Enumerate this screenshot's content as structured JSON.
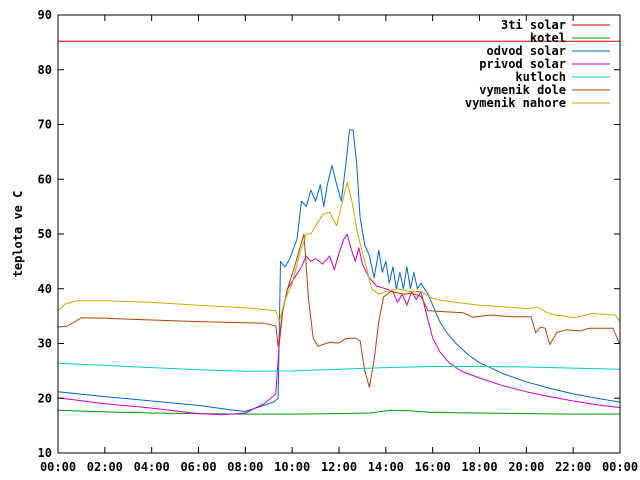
{
  "chart_data": {
    "type": "line",
    "title": "",
    "xlabel": "",
    "ylabel": "teplota ve C",
    "x_ticks": [
      "00:00",
      "02:00",
      "04:00",
      "06:00",
      "08:00",
      "10:00",
      "12:00",
      "14:00",
      "16:00",
      "18:00",
      "20:00",
      "22:00",
      "00:00"
    ],
    "xlim": [
      0,
      24
    ],
    "ylim": [
      10,
      90
    ],
    "y_ticks": [
      10,
      20,
      30,
      40,
      50,
      60,
      70,
      80,
      90
    ],
    "grid": false,
    "legend_position": "top-right",
    "series": [
      {
        "name": "3ti solar",
        "color": "#cc0000",
        "points": [
          [
            0,
            85.2
          ],
          [
            24,
            85.2
          ]
        ]
      },
      {
        "name": "kotel",
        "color": "#009900",
        "points": [
          [
            0,
            17.8
          ],
          [
            2,
            17.5
          ],
          [
            4,
            17.3
          ],
          [
            6,
            17.2
          ],
          [
            8,
            17.1
          ],
          [
            10,
            17.1
          ],
          [
            12,
            17.2
          ],
          [
            13.3,
            17.3
          ],
          [
            14.2,
            17.8
          ],
          [
            15,
            17.7
          ],
          [
            16,
            17.4
          ],
          [
            18,
            17.3
          ],
          [
            20,
            17.2
          ],
          [
            22,
            17.1
          ],
          [
            24,
            17.1
          ]
        ]
      },
      {
        "name": "odvod solar",
        "color": "#0066cc",
        "points": [
          [
            0,
            21.2
          ],
          [
            2,
            20.3
          ],
          [
            4,
            19.5
          ],
          [
            6,
            18.7
          ],
          [
            7.5,
            17.8
          ],
          [
            8,
            17.6
          ],
          [
            8.5,
            18.3
          ],
          [
            9.2,
            19.3
          ],
          [
            9.4,
            20
          ],
          [
            9.5,
            45
          ],
          [
            9.7,
            44
          ],
          [
            9.9,
            45.5
          ],
          [
            10.2,
            49
          ],
          [
            10.4,
            56
          ],
          [
            10.6,
            55
          ],
          [
            10.8,
            58
          ],
          [
            11,
            56
          ],
          [
            11.2,
            59
          ],
          [
            11.35,
            55
          ],
          [
            11.5,
            59
          ],
          [
            11.7,
            62.5
          ],
          [
            11.9,
            59
          ],
          [
            12.1,
            56
          ],
          [
            12.3,
            63
          ],
          [
            12.45,
            69
          ],
          [
            12.6,
            69
          ],
          [
            12.75,
            63
          ],
          [
            12.9,
            53
          ],
          [
            13.1,
            48
          ],
          [
            13.3,
            46
          ],
          [
            13.5,
            42
          ],
          [
            13.7,
            47
          ],
          [
            13.85,
            43
          ],
          [
            14,
            45
          ],
          [
            14.15,
            41
          ],
          [
            14.3,
            44
          ],
          [
            14.45,
            40
          ],
          [
            14.6,
            43
          ],
          [
            14.75,
            40
          ],
          [
            14.9,
            44
          ],
          [
            15.05,
            40
          ],
          [
            15.2,
            43
          ],
          [
            15.35,
            40
          ],
          [
            15.5,
            41
          ],
          [
            15.8,
            39
          ],
          [
            16,
            37
          ],
          [
            16.3,
            34
          ],
          [
            16.6,
            32
          ],
          [
            17,
            30
          ],
          [
            17.5,
            28
          ],
          [
            18,
            26.5
          ],
          [
            19,
            24.5
          ],
          [
            20,
            23
          ],
          [
            21,
            21.8
          ],
          [
            22,
            20.8
          ],
          [
            23,
            20
          ],
          [
            24,
            19.3
          ]
        ]
      },
      {
        "name": "privod solar",
        "color": "#cc00cc",
        "points": [
          [
            0,
            20.1
          ],
          [
            2,
            19
          ],
          [
            4,
            18.2
          ],
          [
            6,
            17.2
          ],
          [
            7,
            17.0
          ],
          [
            8,
            17.3
          ],
          [
            8.8,
            19
          ],
          [
            9.3,
            20.8
          ],
          [
            9.45,
            30
          ],
          [
            9.6,
            36
          ],
          [
            9.8,
            40
          ],
          [
            10.1,
            42
          ],
          [
            10.4,
            44
          ],
          [
            10.6,
            46
          ],
          [
            10.8,
            45
          ],
          [
            11,
            45.5
          ],
          [
            11.3,
            44.5
          ],
          [
            11.6,
            46
          ],
          [
            11.8,
            43.5
          ],
          [
            12,
            46.5
          ],
          [
            12.2,
            49
          ],
          [
            12.35,
            50
          ],
          [
            12.5,
            47.5
          ],
          [
            12.7,
            45
          ],
          [
            12.85,
            47.5
          ],
          [
            13,
            44.5
          ],
          [
            13.3,
            42
          ],
          [
            13.6,
            40.5
          ],
          [
            14,
            40
          ],
          [
            14.3,
            39.5
          ],
          [
            14.5,
            37.5
          ],
          [
            14.7,
            39
          ],
          [
            14.9,
            37
          ],
          [
            15.1,
            39.5
          ],
          [
            15.3,
            38
          ],
          [
            15.5,
            39.5
          ],
          [
            15.7,
            36
          ],
          [
            16,
            31
          ],
          [
            16.3,
            28.5
          ],
          [
            16.7,
            26.5
          ],
          [
            17.2,
            25
          ],
          [
            18,
            23.7
          ],
          [
            19,
            22.3
          ],
          [
            20,
            21.2
          ],
          [
            21,
            20.3
          ],
          [
            22,
            19.5
          ],
          [
            23,
            18.8
          ],
          [
            24,
            18.3
          ]
        ]
      },
      {
        "name": "kutloch",
        "color": "#00cccc",
        "points": [
          [
            0,
            26.4
          ],
          [
            2,
            26
          ],
          [
            4,
            25.6
          ],
          [
            6,
            25.2
          ],
          [
            8,
            24.9
          ],
          [
            10,
            25
          ],
          [
            12,
            25.3
          ],
          [
            14,
            25.6
          ],
          [
            16,
            25.8
          ],
          [
            18,
            25.8
          ],
          [
            20,
            25.7
          ],
          [
            22,
            25.5
          ],
          [
            24,
            25.3
          ]
        ]
      },
      {
        "name": "vymenik dole",
        "color": "#b24400",
        "points": [
          [
            0,
            33
          ],
          [
            0.4,
            33.2
          ],
          [
            1,
            34.7
          ],
          [
            2,
            34.6
          ],
          [
            4,
            34.3
          ],
          [
            6,
            34
          ],
          [
            8,
            33.8
          ],
          [
            8.8,
            33.7
          ],
          [
            9.3,
            33.2
          ],
          [
            9.4,
            29.5
          ],
          [
            9.6,
            36
          ],
          [
            9.8,
            40
          ],
          [
            10.1,
            44
          ],
          [
            10.4,
            48.5
          ],
          [
            10.5,
            50
          ],
          [
            10.7,
            38
          ],
          [
            10.9,
            31
          ],
          [
            11.1,
            29.5
          ],
          [
            11.6,
            30.2
          ],
          [
            12,
            30.1
          ],
          [
            12.3,
            30.9
          ],
          [
            12.7,
            31
          ],
          [
            12.9,
            30.5
          ],
          [
            13.1,
            25
          ],
          [
            13.3,
            22
          ],
          [
            13.5,
            27
          ],
          [
            13.7,
            34
          ],
          [
            13.9,
            38.5
          ],
          [
            14.2,
            39.5
          ],
          [
            14.8,
            39
          ],
          [
            15.1,
            39.2
          ],
          [
            15.5,
            38.6
          ],
          [
            15.8,
            36
          ],
          [
            16.5,
            35.8
          ],
          [
            17.3,
            35.6
          ],
          [
            17.7,
            34.8
          ],
          [
            18.5,
            35.2
          ],
          [
            19.3,
            34.9
          ],
          [
            20.2,
            34.9
          ],
          [
            20.4,
            32
          ],
          [
            20.6,
            33
          ],
          [
            20.8,
            32.8
          ],
          [
            21,
            29.8
          ],
          [
            21.3,
            32
          ],
          [
            21.7,
            32.5
          ],
          [
            22.3,
            32.3
          ],
          [
            22.7,
            32.8
          ],
          [
            23.7,
            32.8
          ],
          [
            24,
            29.7
          ]
        ]
      },
      {
        "name": "vymenik nahore",
        "color": "#ccaa00",
        "points": [
          [
            0,
            36
          ],
          [
            0.3,
            37.2
          ],
          [
            0.8,
            37.8
          ],
          [
            2,
            37.8
          ],
          [
            4,
            37.5
          ],
          [
            6,
            37
          ],
          [
            8,
            36.5
          ],
          [
            9.3,
            36
          ],
          [
            9.45,
            34
          ],
          [
            9.7,
            38
          ],
          [
            10,
            41
          ],
          [
            10.3,
            46
          ],
          [
            10.6,
            50
          ],
          [
            10.8,
            50
          ],
          [
            11,
            51.5
          ],
          [
            11.3,
            53.5
          ],
          [
            11.6,
            54
          ],
          [
            11.9,
            51.5
          ],
          [
            12.1,
            55
          ],
          [
            12.35,
            59.5
          ],
          [
            12.55,
            56
          ],
          [
            12.8,
            50
          ],
          [
            13.1,
            45
          ],
          [
            13.4,
            40
          ],
          [
            13.7,
            39
          ],
          [
            14,
            39.5
          ],
          [
            14.5,
            40
          ],
          [
            15,
            39.5
          ],
          [
            15.5,
            39.5
          ],
          [
            16,
            38.2
          ],
          [
            16.5,
            37.8
          ],
          [
            17,
            37.5
          ],
          [
            18,
            37
          ],
          [
            19,
            36.7
          ],
          [
            20,
            36.4
          ],
          [
            20.5,
            36.6
          ],
          [
            20.9,
            35.6
          ],
          [
            21.2,
            35.2
          ],
          [
            21.6,
            35
          ],
          [
            22,
            34.7
          ],
          [
            22.4,
            35
          ],
          [
            22.8,
            35.5
          ],
          [
            23.4,
            35.3
          ],
          [
            23.8,
            35.2
          ],
          [
            24,
            34
          ]
        ]
      }
    ]
  }
}
